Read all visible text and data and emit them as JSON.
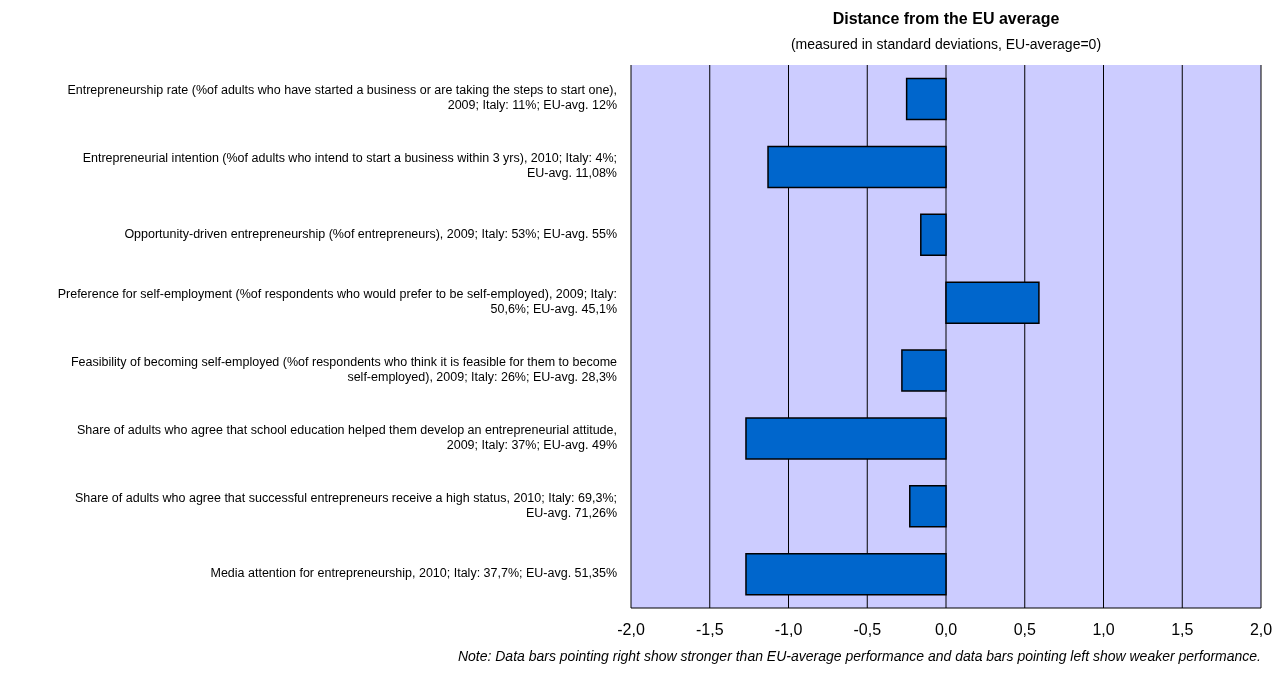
{
  "chart_data": {
    "type": "bar",
    "orientation": "horizontal",
    "title": "Distance from the EU average",
    "subtitle": "(measured in standard deviations, EU-average=0)",
    "categories": [
      "Entrepreneurship rate (%of adults who have started a business or are taking the steps to start one), 2009; Italy: 11%; EU-avg. 12%",
      "Entrepreneurial intention (%of adults who intend to start a business within 3 yrs), 2010; Italy: 4%; EU-avg. 11,08%",
      "Opportunity-driven entrepreneurship (%of entrepreneurs), 2009; Italy: 53%; EU-avg. 55%",
      "Preference for self-employment (%of respondents who would prefer to be self-employed), 2009; Italy: 50,6%; EU-avg. 45,1%",
      "Feasibility of becoming self-employed (%of respondents who think it is feasible for them to become self-employed), 2009; Italy: 26%; EU-avg. 28,3%",
      "Share of adults who agree that school education helped them develop an entrepreneurial attitude, 2009; Italy: 37%; EU-avg. 49%",
      "Share of adults who agree that successful entrepreneurs receive a high status, 2010; Italy: 69,3%; EU-avg. 71,26%",
      "Media attention for entrepreneurship, 2010; Italy: 37,7%; EU-avg. 51,35%"
    ],
    "values": [
      -0.25,
      -1.13,
      -0.16,
      0.59,
      -0.28,
      -1.27,
      -0.23,
      -1.27
    ],
    "color": "#0066cc",
    "xlim": [
      -2,
      2
    ],
    "xticks": [
      {
        "value": -2,
        "label": "-2,0"
      },
      {
        "value": -1.5,
        "label": "-1,5"
      },
      {
        "value": -1,
        "label": "-1,0"
      },
      {
        "value": -0.5,
        "label": "-0,5"
      },
      {
        "value": 0,
        "label": "0,0"
      },
      {
        "value": 0.5,
        "label": "0,5"
      },
      {
        "value": 1,
        "label": "1,0"
      },
      {
        "value": 1.5,
        "label": "1,5"
      },
      {
        "value": 2,
        "label": "2,0"
      }
    ],
    "grid": "x",
    "annotations": [
      "Note: Data bars pointing right show stronger than EU-average performance and data bars pointing left show weaker performance."
    ]
  }
}
